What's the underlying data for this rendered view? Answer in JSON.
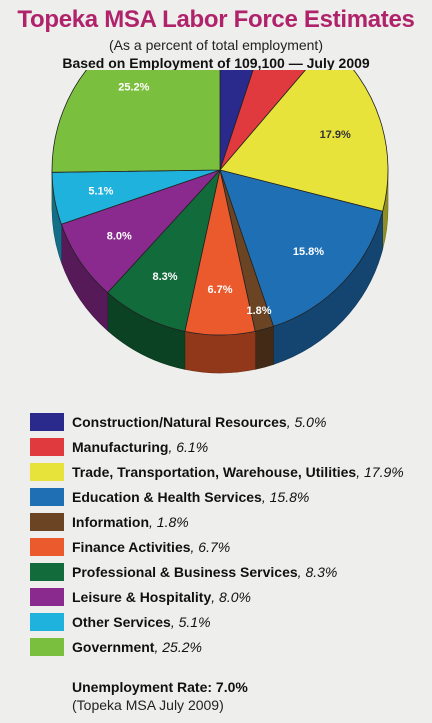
{
  "header": {
    "title": "Topeka MSA Labor Force Estimates",
    "subtitle": "(As a percent of total employment)",
    "subtitle2": "Based on Employment of 109,100 — July 2009"
  },
  "chart_data": {
    "type": "pie",
    "title": "Topeka MSA Labor Force Estimates",
    "slices": [
      {
        "label": "Construction/Natural Resources",
        "value": 5.0,
        "display": "5.0%",
        "value_text": ", 5.0%",
        "color": "#2a2a8c"
      },
      {
        "label": "Manufacturing",
        "value": 6.1,
        "display": "6.1%",
        "value_text": ", 6.1%",
        "color": "#e03a3e"
      },
      {
        "label": "Trade, Transportation, Warehouse, Utilities",
        "value": 17.9,
        "display": "17.9%",
        "value_text": ", 17.9%",
        "color": "#e8e33a"
      },
      {
        "label": "Education & Health Services",
        "value": 15.8,
        "display": "15.8%",
        "value_text": ", 15.8%",
        "color": "#1f6fb5"
      },
      {
        "label": "Information",
        "value": 1.8,
        "display": "1.8%",
        "value_text": ", 1.8%",
        "color": "#6b4424"
      },
      {
        "label": "Finance Activities",
        "value": 6.7,
        "display": "6.7%",
        "value_text": ", 6.7%",
        "color": "#ea5a2c"
      },
      {
        "label": "Professional & Business Services",
        "value": 8.3,
        "display": "8.3%",
        "value_text": ", 8.3%",
        "color": "#116b3a"
      },
      {
        "label": "Leisure & Hospitality",
        "value": 8.0,
        "display": "8.0%",
        "value_text": ", 8.0%",
        "color": "#8a2a8e"
      },
      {
        "label": "Other Services",
        "value": 5.1,
        "display": "5.1%",
        "value_text": ", 5.1%",
        "color": "#1fb2dc"
      },
      {
        "label": "Government",
        "value": 25.2,
        "display": "25.2%",
        "value_text": ", 25.2%",
        "color": "#7bbf3f"
      }
    ],
    "legend_position": "bottom"
  },
  "footer": {
    "unemployment": "Unemployment Rate:  7.0%",
    "note": "(Topeka MSA July 2009)"
  }
}
